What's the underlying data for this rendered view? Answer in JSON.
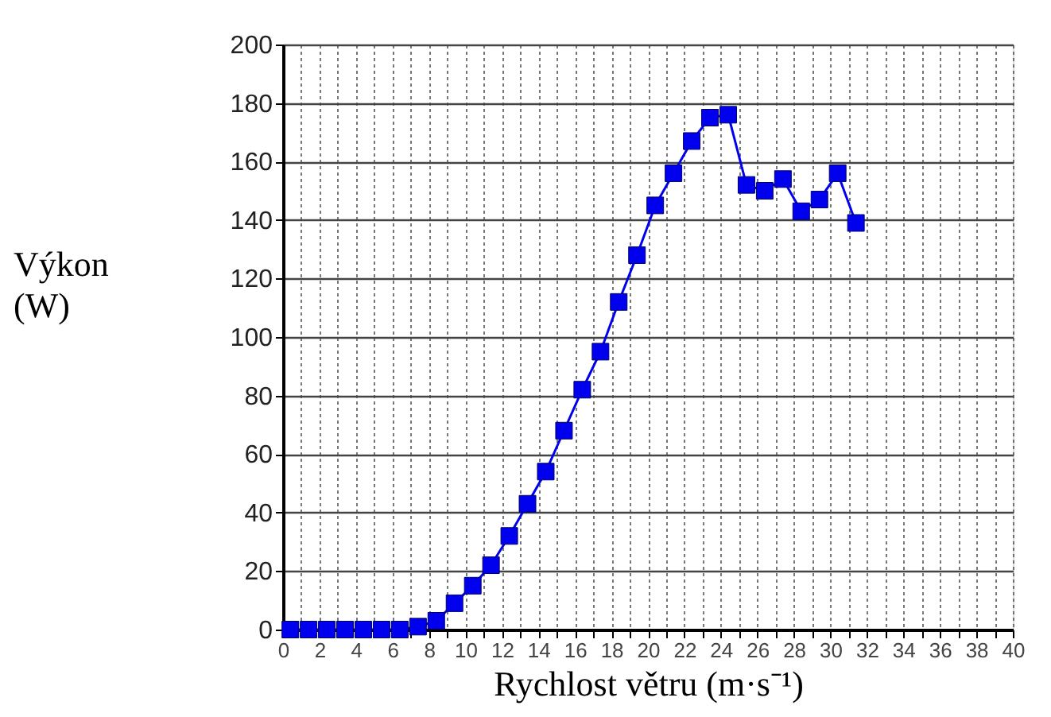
{
  "chart_data": {
    "type": "line",
    "xlabel": "Rychlost větru (m·s⁻¹)",
    "ylabel": "Výkon (W)",
    "x": [
      0.4,
      1.4,
      2.4,
      3.4,
      4.4,
      5.4,
      6.4,
      7.4,
      8.4,
      9.4,
      10.4,
      11.4,
      12.4,
      13.4,
      14.4,
      15.4,
      16.4,
      17.4,
      18.4,
      19.4,
      20.4,
      21.4,
      22.4,
      23.4,
      24.4,
      25.4,
      26.4,
      27.4,
      28.4,
      29.4,
      30.4,
      31.4
    ],
    "series": [
      {
        "color": "#0000ee",
        "values": [
          0,
          0,
          0,
          0,
          0,
          0,
          0,
          1,
          3,
          9,
          15,
          22,
          32,
          43,
          54,
          68,
          82,
          95,
          112,
          128,
          145,
          156,
          167,
          175,
          176,
          152,
          150,
          154,
          143,
          147,
          156,
          139
        ]
      }
    ],
    "xlim": [
      0,
      40
    ],
    "xticks": [
      0,
      {
        "value": 1,
        "label": null
      },
      2,
      {
        "value": 3,
        "label": null
      },
      4,
      {
        "value": 5,
        "label": null
      },
      6,
      {
        "value": 7,
        "label": null
      },
      8,
      {
        "value": 9,
        "label": null
      },
      10,
      {
        "value": 11,
        "label": null
      },
      12,
      {
        "value": 13,
        "label": null
      },
      14,
      {
        "value": 15,
        "label": null
      },
      16,
      {
        "value": 17,
        "label": null
      },
      18,
      {
        "value": 19,
        "label": null
      },
      20,
      {
        "value": 21,
        "label": null
      },
      22,
      {
        "value": 23,
        "label": null
      },
      24,
      {
        "value": 25,
        "label": null
      },
      26,
      {
        "value": 27,
        "label": null
      },
      28,
      {
        "value": 29,
        "label": null
      },
      30,
      {
        "value": 31,
        "label": null
      },
      32,
      {
        "value": 33,
        "label": null
      },
      34,
      {
        "value": 35,
        "label": null
      },
      36,
      {
        "value": 37,
        "label": null
      },
      38,
      {
        "value": 39,
        "label": null
      },
      40
    ],
    "ylim": [
      0,
      200
    ],
    "yticks": [
      0,
      20,
      40,
      60,
      80,
      100,
      120,
      140,
      160,
      180,
      200
    ],
    "grid": true,
    "legend": false,
    "marker": "square",
    "line_style": "solid"
  }
}
